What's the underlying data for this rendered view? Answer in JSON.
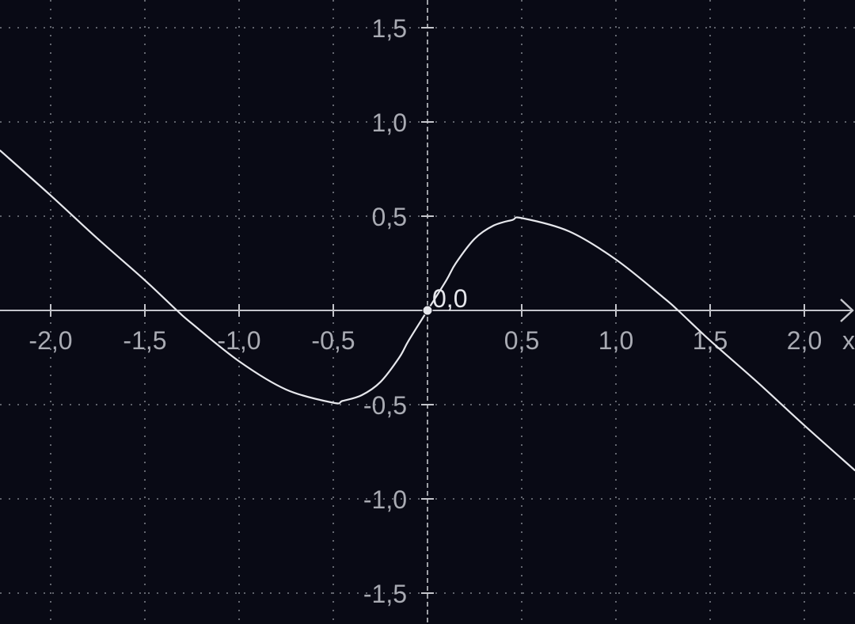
{
  "chart_data": {
    "type": "line",
    "title": "",
    "xlabel": "x",
    "ylabel": "",
    "xlim": [
      -2.27,
      2.27
    ],
    "ylim": [
      -1.66,
      1.65
    ],
    "grid": true,
    "x_ticks": [
      -2.0,
      -1.5,
      -1.0,
      -0.5,
      0.5,
      1.0,
      1.5,
      2.0
    ],
    "x_tick_labels": [
      "-2,0",
      "-1,5",
      "-1,0",
      "-0,5",
      "0,5",
      "1,0",
      "1,5",
      "2,0"
    ],
    "y_ticks": [
      1.5,
      1.0,
      0.5,
      -0.5,
      -1.0,
      -1.5
    ],
    "y_tick_labels": [
      "1,5",
      "1,0",
      "0,5",
      "-0,5",
      "-1,0",
      "-1,5"
    ],
    "series": [
      {
        "x": [
          -2.27,
          -2.0,
          -1.75,
          -1.5,
          -1.33,
          -1.25,
          -1.0,
          -0.75,
          -0.5,
          -0.45,
          -0.35,
          -0.25,
          -0.15,
          -0.1,
          0.0,
          0.1,
          0.15,
          0.25,
          0.35,
          0.45,
          0.5,
          0.75,
          1.0,
          1.25,
          1.33,
          1.5,
          1.75,
          2.0,
          2.27
        ],
        "y": [
          0.85,
          0.61,
          0.38,
          0.16,
          0.0,
          -0.07,
          -0.27,
          -0.42,
          -0.49,
          -0.48,
          -0.45,
          -0.38,
          -0.25,
          -0.16,
          0.0,
          0.16,
          0.25,
          0.38,
          0.45,
          0.48,
          0.49,
          0.42,
          0.27,
          0.07,
          0.0,
          -0.16,
          -0.38,
          -0.61,
          -0.85
        ]
      }
    ],
    "points": [
      {
        "x": 0.0,
        "y": 0.0,
        "label": "0,0"
      }
    ],
    "colors": {
      "background": "#090a15",
      "curve": "#e6e7ec",
      "axis": "#c4c5cb",
      "grid": "#7c7f88",
      "tick_label": "#a9abb3"
    }
  }
}
